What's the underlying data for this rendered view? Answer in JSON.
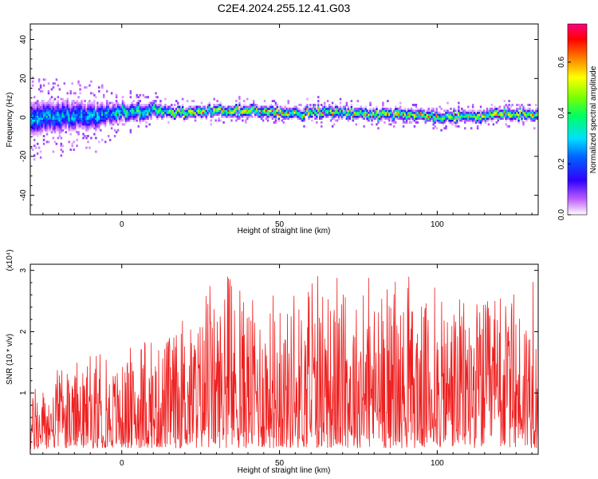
{
  "title": "C2E4.2024.255.12.41.G03",
  "chart_data": [
    {
      "type": "heatmap",
      "xlabel": "Height of straight line (km)",
      "ylabel": "Frequency (Hz)",
      "xlim": [
        -29,
        132
      ],
      "ylim": [
        -50,
        48
      ],
      "x_ticks": [
        0,
        50,
        100
      ],
      "x_tick_labels": [
        "0",
        "50",
        "100"
      ],
      "y_ticks": [
        -40,
        -20,
        0,
        20,
        40
      ],
      "y_tick_labels": [
        "-40",
        "-20",
        "0",
        "20",
        "40"
      ],
      "colorbar": {
        "label": "Normalized spectral amplitude",
        "range": [
          0,
          0.75
        ],
        "ticks": [
          0,
          0.2,
          0.4,
          0.6
        ],
        "tick_labels": [
          "0.0",
          "0.2",
          "0.4",
          "0.6"
        ]
      },
      "ridge": {
        "x": [
          -29,
          -25,
          -20,
          -15,
          -10,
          -5,
          0,
          5,
          10,
          15,
          20,
          30,
          40,
          50,
          60,
          70,
          80,
          90,
          100,
          110,
          120,
          132
        ],
        "center_hz": [
          -2,
          0,
          0,
          1,
          0,
          1,
          2,
          2,
          3,
          3,
          2,
          3,
          3,
          2,
          2,
          2,
          1,
          1,
          0,
          0,
          1,
          1
        ],
        "spread_hz": [
          10,
          9,
          9,
          8,
          8,
          6,
          5,
          5,
          4,
          3,
          3,
          3,
          3,
          3,
          3,
          3,
          3,
          3,
          3,
          3,
          3,
          3
        ],
        "peak_amplitude": [
          0.35,
          0.35,
          0.4,
          0.4,
          0.4,
          0.4,
          0.45,
          0.5,
          0.55,
          0.6,
          0.7,
          0.7,
          0.72,
          0.72,
          0.7,
          0.72,
          0.72,
          0.72,
          0.7,
          0.7,
          0.7,
          0.7
        ]
      }
    },
    {
      "type": "line",
      "xlabel": "Height of straight line (km)",
      "ylabel": "SNR (10 * v/v)",
      "y_multiplier_label": "(x10⁴)",
      "xlim": [
        -29,
        132
      ],
      "ylim": [
        0,
        3.1
      ],
      "x_ticks": [
        0,
        50,
        100
      ],
      "x_tick_labels": [
        "0",
        "50",
        "100"
      ],
      "y_ticks": [
        1,
        2,
        3
      ],
      "y_tick_labels": [
        "1",
        "2",
        "3"
      ],
      "series": [
        {
          "color": "#ee2020",
          "envelope_x": [
            -29,
            -20,
            -10,
            0,
            10,
            15,
            20,
            30,
            40,
            50,
            60,
            70,
            80,
            90,
            100,
            110,
            120,
            132
          ],
          "envelope_y_max": [
            1.1,
            1.4,
            1.6,
            1.7,
            1.9,
            2.3,
            2.4,
            2.9,
            3.0,
            2.7,
            3.0,
            2.9,
            3.0,
            2.9,
            2.9,
            3.0,
            2.9,
            2.9
          ],
          "envelope_y_min": [
            0.05,
            0.1,
            0.1,
            0.1,
            0.1,
            0.1,
            0.1,
            0.1,
            0.1,
            0.1,
            0.1,
            0.1,
            0.1,
            0.1,
            0.1,
            0.1,
            0.1,
            0.1
          ]
        }
      ]
    }
  ]
}
